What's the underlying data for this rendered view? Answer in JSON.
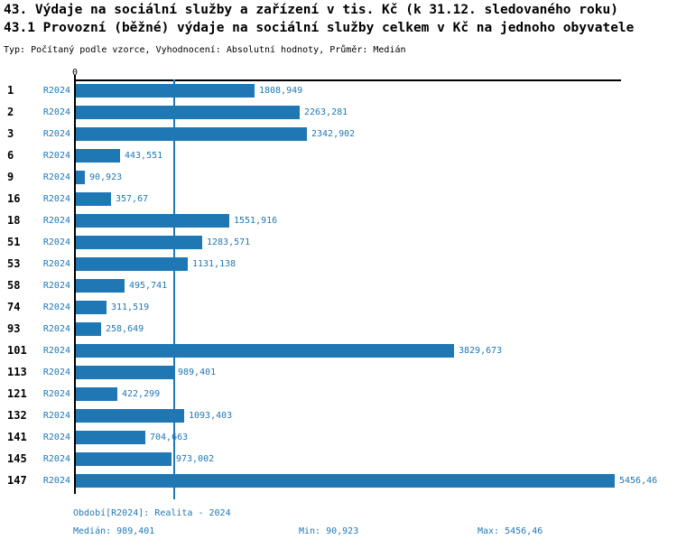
{
  "header": {
    "title1": "43. Výdaje na sociální služby a zařízení v tis. Kč (k 31.12. sledovaného roku)",
    "title2": "43.1 Provozní (běžné) výdaje na sociální služby celkem v Kč na jednoho obyvatele",
    "meta": "Typ: Počítaný podle vzorce, Vyhodnocení: Absolutní hodnoty, Průměr: Medián"
  },
  "chart_data": {
    "type": "bar",
    "orientation": "horizontal",
    "series_label": "R2024",
    "categories": [
      "1",
      "2",
      "3",
      "6",
      "9",
      "16",
      "18",
      "51",
      "53",
      "58",
      "74",
      "93",
      "101",
      "113",
      "121",
      "132",
      "141",
      "145",
      "147"
    ],
    "values": [
      1808.949,
      2263.281,
      2342.902,
      443.551,
      90.923,
      357.67,
      1551.916,
      1283.571,
      1131.138,
      495.741,
      311.519,
      258.649,
      3829.673,
      989.401,
      422.299,
      1093.403,
      704.663,
      973.002,
      5456.46
    ],
    "value_labels": [
      "1808,949",
      "2263,281",
      "2342,902",
      "443,551",
      "90,923",
      "357,67",
      "1551,916",
      "1283,571",
      "1131,138",
      "495,741",
      "311,519",
      "258,649",
      "3829,673",
      "989,401",
      "422,299",
      "1093,403",
      "704,663",
      "973,002",
      "5456,46"
    ],
    "median_value": 989.401,
    "axis": {
      "zero_label": "0",
      "xlim": [
        0,
        5540
      ],
      "grid": false,
      "median_line": true
    },
    "colors": {
      "bar": "#1f77b4",
      "blue_text": "#1f77b4",
      "axis": "#000000"
    }
  },
  "footer": {
    "period": "Období[R2024]: Realita - 2024",
    "median": "Medián: 989,401",
    "min": "Min: 90,923",
    "max": "Max: 5456,46"
  }
}
